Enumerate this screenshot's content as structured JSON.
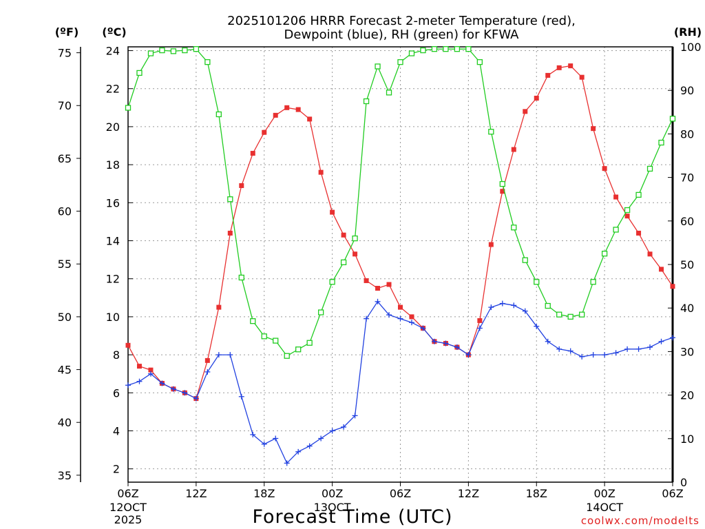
{
  "chart_data": {
    "type": "line",
    "title_line1": "2025101206 HRRR Forecast 2-meter Temperature (red),",
    "title_line2": "Dewpoint (blue), RH (green) for KFWA",
    "xlabel": "Forecast Time (UTC)",
    "credit": "coolwx.com/modelts",
    "left_f_label": "(ºF)",
    "left_c_label": "(ºC)",
    "right_label": "(RH)",
    "x_range_hours": [
      0,
      48
    ],
    "x_ticks": [
      {
        "h": 0,
        "label": "06Z"
      },
      {
        "h": 6,
        "label": "12Z"
      },
      {
        "h": 12,
        "label": "18Z"
      },
      {
        "h": 18,
        "label": "00Z"
      },
      {
        "h": 24,
        "label": "06Z"
      },
      {
        "h": 30,
        "label": "12Z"
      },
      {
        "h": 36,
        "label": "18Z"
      },
      {
        "h": 42,
        "label": "00Z"
      },
      {
        "h": 48,
        "label": "06Z"
      }
    ],
    "date_labels": [
      {
        "h": 0,
        "lines": [
          "12OCT",
          "2025"
        ]
      },
      {
        "h": 18,
        "lines": [
          "13OCT"
        ]
      },
      {
        "h": 42,
        "lines": [
          "14OCT"
        ]
      }
    ],
    "c_range": [
      1.3,
      24.2
    ],
    "c_ticks": [
      2,
      4,
      6,
      8,
      10,
      12,
      14,
      16,
      18,
      20,
      22,
      24
    ],
    "f_ticks": [
      35,
      40,
      45,
      50,
      55,
      60,
      65,
      70,
      75
    ],
    "rh_range": [
      0,
      100
    ],
    "rh_ticks": [
      0,
      10,
      20,
      30,
      40,
      50,
      60,
      70,
      80,
      90,
      100
    ],
    "colors": {
      "temperature": "#e83030",
      "dewpoint": "#2040e0",
      "rh": "#20cc20"
    },
    "series": [
      {
        "name": "Temperature",
        "units": "C",
        "marker": "filled-square",
        "values": [
          8.5,
          7.4,
          7.2,
          6.5,
          6.2,
          6.0,
          5.7,
          7.7,
          10.5,
          14.4,
          16.9,
          18.6,
          19.7,
          20.6,
          21.0,
          20.9,
          20.4,
          17.6,
          15.5,
          14.3,
          13.3,
          11.9,
          11.5,
          11.7,
          10.5,
          10.0,
          9.4,
          8.7,
          8.6,
          8.4,
          8.0,
          9.8,
          13.8,
          16.6,
          18.8,
          20.8,
          21.5,
          22.7,
          23.1,
          23.2,
          22.6,
          19.9,
          17.8,
          16.3,
          15.3,
          14.4,
          13.3,
          12.5,
          11.6
        ]
      },
      {
        "name": "Dewpoint",
        "units": "C",
        "marker": "plus",
        "values": [
          6.4,
          6.6,
          7.0,
          6.5,
          6.2,
          6.0,
          5.7,
          7.1,
          8.0,
          8.0,
          5.8,
          3.8,
          3.3,
          3.6,
          2.3,
          2.9,
          3.2,
          3.6,
          4.0,
          4.2,
          4.8,
          9.9,
          10.8,
          10.1,
          9.9,
          9.7,
          9.4,
          8.7,
          8.6,
          8.4,
          8.0,
          9.4,
          10.5,
          10.7,
          10.6,
          10.3,
          9.5,
          8.7,
          8.3,
          8.2,
          7.9,
          8.0,
          8.0,
          8.1,
          8.3,
          8.3,
          8.4,
          8.7,
          8.9
        ]
      },
      {
        "name": "RH",
        "units": "%",
        "marker": "open-square",
        "values": [
          86,
          94,
          98.5,
          99.2,
          99,
          99.2,
          99.5,
          96.5,
          84.5,
          65,
          47,
          37,
          33.5,
          32.5,
          29,
          30.5,
          32,
          39,
          46,
          50.5,
          56,
          87.5,
          95.5,
          89.5,
          96.5,
          98.5,
          99.2,
          99.5,
          99.5,
          99.5,
          99.5,
          96.5,
          80.5,
          68.5,
          58.5,
          51,
          46,
          40.5,
          38.5,
          38,
          38.5,
          46,
          52.5,
          58,
          62.5,
          66,
          72,
          78,
          83.5
        ]
      }
    ]
  }
}
